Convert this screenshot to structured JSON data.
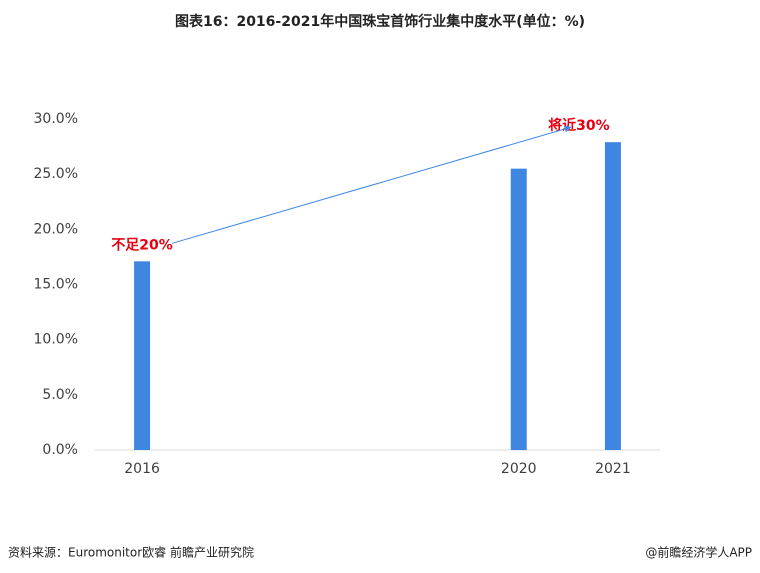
{
  "chart_data": {
    "type": "bar",
    "title": "图表16：2016-2021年中国珠宝首饰行业集中度水平(单位：%)",
    "x": [
      2016,
      2020,
      2021
    ],
    "values": [
      17.1,
      25.5,
      27.9
    ],
    "color": "#3f86e3",
    "xlim": [
      2015.5,
      2021.5
    ],
    "xticks": [
      2016,
      2020,
      2021
    ],
    "ylim": [
      0,
      30
    ],
    "yticks": [
      {
        "value": 0,
        "label": "0.0%"
      },
      {
        "value": 5,
        "label": "5.0%"
      },
      {
        "value": 10,
        "label": "10.0%"
      },
      {
        "value": 15,
        "label": "15.0%"
      },
      {
        "value": 20,
        "label": "20.0%"
      },
      {
        "value": 25,
        "label": "25.0%"
      },
      {
        "value": 30,
        "label": "30.0%"
      }
    ],
    "grid": false,
    "annotations": [
      "不足20%",
      "将近30%"
    ],
    "source": "资料来源：Euromonitor欧睿 前瞻产业研究院",
    "credit": "@前瞻经济学人APP"
  }
}
